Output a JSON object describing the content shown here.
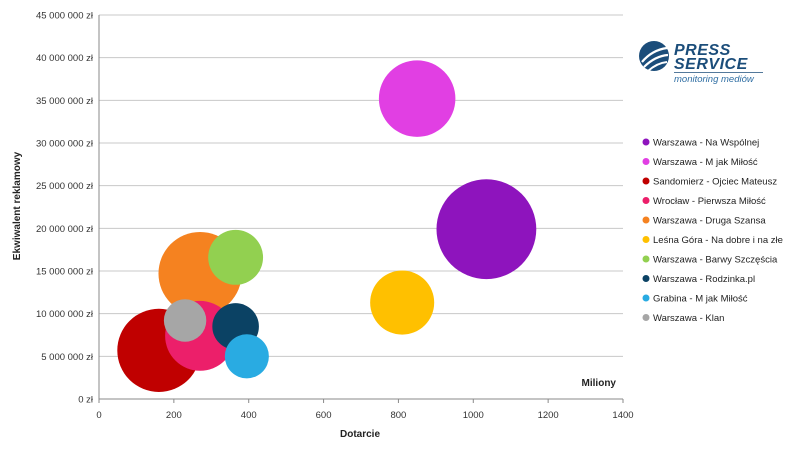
{
  "chart_data": {
    "type": "bubble",
    "xlabel": "Dotarcie",
    "ylabel": "Ekwiwalent reklamowy",
    "units_label": "Miliony",
    "xlim": [
      0,
      1400
    ],
    "ylim": [
      0,
      45000000
    ],
    "x_ticks": [
      "0",
      "200",
      "400",
      "600",
      "800",
      "1000",
      "1200",
      "1400"
    ],
    "y_ticks": [
      "0 zł",
      "5 000 000 zł",
      "10 000 000 zł",
      "15 000 000 zł",
      "20 000 000 zł",
      "25 000 000 zł",
      "30 000 000 zł",
      "35 000 000 zł",
      "40 000 000 zł",
      "45 000 000 zł"
    ],
    "grid": "horizontal",
    "legend_position": "right",
    "series": [
      {
        "name": "Sandomierz - Ojciec Mateusz",
        "x": 160,
        "y": 5700000,
        "size": 1.0,
        "color": "#c00000"
      },
      {
        "name": "Warszawa - Druga Szansa",
        "x": 270,
        "y": 14700000,
        "size": 1.0,
        "color": "#f58220"
      },
      {
        "name": "Wrocław - Pierwsza Miłość",
        "x": 270,
        "y": 7400000,
        "size": 0.84,
        "color": "#ec1f6a"
      },
      {
        "name": "Warszawa - Barwy Szczęścia",
        "x": 365,
        "y": 16600000,
        "size": 0.66,
        "color": "#92d050"
      },
      {
        "name": "Warszawa - Rodzinka.pl",
        "x": 365,
        "y": 8500000,
        "size": 0.56,
        "color": "#0b4264"
      },
      {
        "name": "Grabina - M jak Miłość",
        "x": 395,
        "y": 5000000,
        "size": 0.53,
        "color": "#29abe2"
      },
      {
        "name": "Warszawa - Klan",
        "x": 230,
        "y": 9200000,
        "size": 0.51,
        "color": "#a6a6a6"
      },
      {
        "name": "Leśna Góra - Na dobre i na złe",
        "x": 810,
        "y": 11300000,
        "size": 0.77,
        "color": "#ffc000"
      },
      {
        "name": "Warszawa - M jak Miłość",
        "x": 850,
        "y": 35200000,
        "size": 0.92,
        "color": "#e13fe3"
      },
      {
        "name": "Warszawa - Na Wspólnej",
        "x": 1035,
        "y": 19900000,
        "size": 1.2,
        "color": "#8e14bd"
      }
    ],
    "legend_order": [
      "Warszawa - Na Wspólnej",
      "Warszawa - M jak Miłość",
      "Sandomierz - Ojciec Mateusz",
      "Wrocław - Pierwsza Miłość",
      "Warszawa - Druga Szansa",
      "Leśna Góra - Na dobre i na złe",
      "Warszawa - Barwy Szczęścia",
      "Warszawa - Rodzinka.pl",
      "Grabina - M jak Miłość",
      "Warszawa - Klan"
    ]
  },
  "logo": {
    "line1": "PRESS",
    "line2": "SERVICE",
    "tagline": "monitoring mediów",
    "color": "#1b4d7a",
    "accent": "#2f6ea3"
  }
}
